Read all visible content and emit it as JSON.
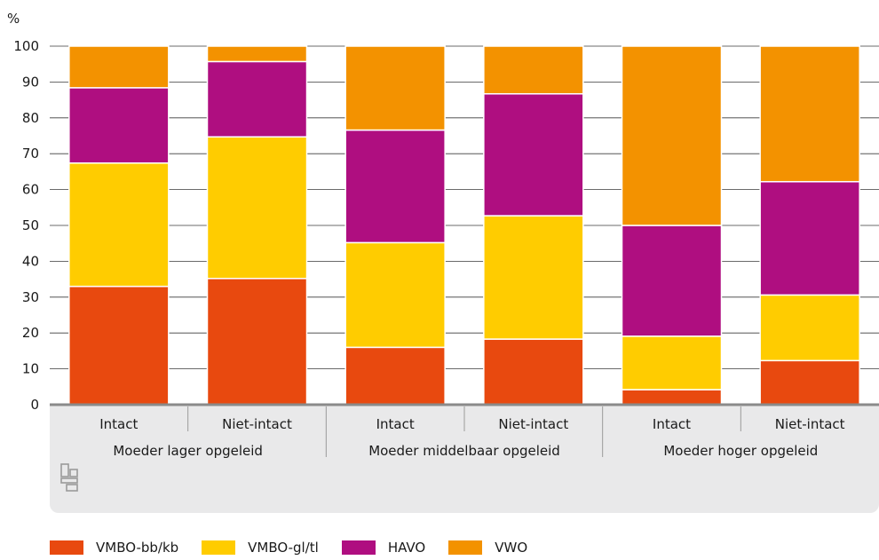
{
  "chart_data": {
    "type": "bar",
    "stacked": true,
    "ylabel": "%",
    "ylim": [
      0,
      100
    ],
    "yticks": [
      0,
      10,
      20,
      30,
      40,
      50,
      60,
      70,
      80,
      90,
      100
    ],
    "grid": true,
    "groups": [
      {
        "label": "Moeder lager opgeleid",
        "categories": [
          "Intact",
          "Niet-intact"
        ]
      },
      {
        "label": "Moeder middelbaar opgeleid",
        "categories": [
          "Intact",
          "Niet-intact"
        ]
      },
      {
        "label": "Moeder hoger opgeleid",
        "categories": [
          "Intact",
          "Niet-intact"
        ]
      }
    ],
    "categories": [
      "Intact",
      "Niet-intact",
      "Intact",
      "Niet-intact",
      "Intact",
      "Niet-intact"
    ],
    "series": [
      {
        "name": "VMBO-bb/kb",
        "color": "#e8490f",
        "values": [
          33.0,
          35.2,
          16.0,
          18.3,
          4.2,
          12.3
        ]
      },
      {
        "name": "VMBO-gl/tl",
        "color": "#ffcc00",
        "values": [
          34.4,
          39.5,
          29.2,
          34.4,
          14.9,
          18.3
        ]
      },
      {
        "name": "HAVO",
        "color": "#af0e80",
        "values": [
          21.0,
          21.0,
          31.4,
          34.0,
          30.9,
          31.6
        ]
      },
      {
        "name": "VWO",
        "color": "#f39200",
        "values": [
          11.6,
          4.3,
          23.4,
          13.3,
          50.0,
          37.8
        ]
      }
    ],
    "legend_position": "bottom-left"
  }
}
